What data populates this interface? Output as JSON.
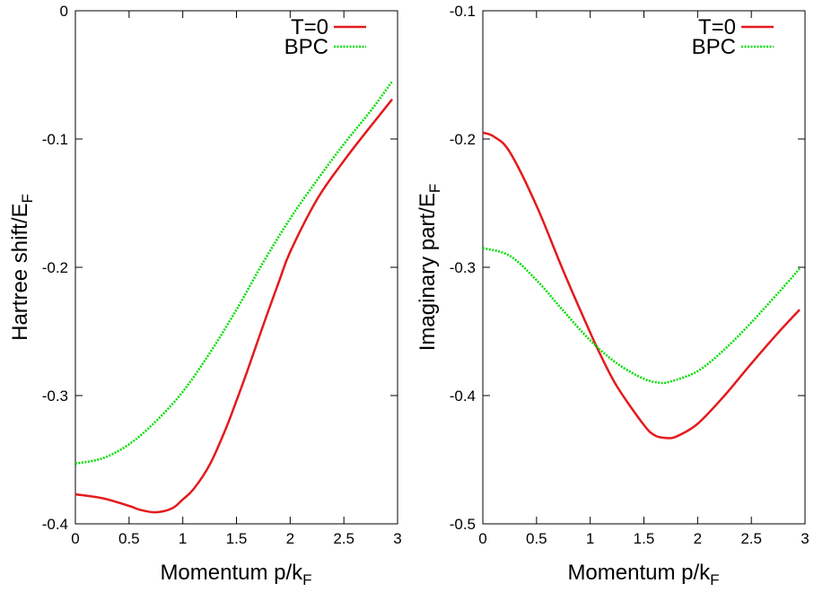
{
  "chart_data": [
    {
      "type": "line",
      "xlabel": "Momentum p/k",
      "xlabel_sub": "F",
      "ylabel": "Hartree shift/E",
      "ylabel_sub": "F",
      "xlim": [
        0,
        3
      ],
      "ylim": [
        -0.4,
        0
      ],
      "xticks": [
        0,
        0.5,
        1,
        1.5,
        2,
        2.5,
        3
      ],
      "xtick_labels": [
        "0",
        "0.5",
        "1",
        "1.5",
        "2",
        "2.5",
        "3"
      ],
      "yticks": [
        -0.4,
        -0.3,
        -0.2,
        -0.1,
        0
      ],
      "ytick_labels": [
        "-0.4",
        "-0.3",
        "-0.2",
        "-0.1",
        "0"
      ],
      "grid": false,
      "legend_position": "top-right",
      "series": [
        {
          "name": "T=0",
          "color": "#e41a1c",
          "dash": "solid",
          "x": [
            0,
            0.25,
            0.5,
            0.6,
            0.75,
            0.9,
            1.0,
            1.1,
            1.25,
            1.4,
            1.5,
            1.6,
            1.75,
            1.9,
            2.0,
            2.25,
            2.5,
            2.75,
            2.95
          ],
          "y": [
            -0.377,
            -0.38,
            -0.386,
            -0.389,
            -0.391,
            -0.388,
            -0.381,
            -0.373,
            -0.354,
            -0.326,
            -0.304,
            -0.281,
            -0.245,
            -0.21,
            -0.188,
            -0.147,
            -0.117,
            -0.09,
            -0.069
          ]
        },
        {
          "name": "BPC",
          "color": "#00dd00",
          "dash": "dotted",
          "x": [
            0,
            0.25,
            0.5,
            0.75,
            1.0,
            1.25,
            1.5,
            1.75,
            2.0,
            2.25,
            2.5,
            2.75,
            2.95
          ],
          "y": [
            -0.353,
            -0.349,
            -0.338,
            -0.32,
            -0.297,
            -0.267,
            -0.233,
            -0.196,
            -0.162,
            -0.132,
            -0.104,
            -0.078,
            -0.055
          ]
        }
      ]
    },
    {
      "type": "line",
      "xlabel": "Momentum p/k",
      "xlabel_sub": "F",
      "ylabel": "Imaginary part/E",
      "ylabel_sub": "F",
      "xlim": [
        0,
        3
      ],
      "ylim": [
        -0.5,
        -0.1
      ],
      "xticks": [
        0,
        0.5,
        1,
        1.5,
        2,
        2.5,
        3
      ],
      "xtick_labels": [
        "0",
        "0.5",
        "1",
        "1.5",
        "2",
        "2.5",
        "3"
      ],
      "yticks": [
        -0.5,
        -0.4,
        -0.3,
        -0.2,
        -0.1
      ],
      "ytick_labels": [
        "-0.5",
        "-0.4",
        "-0.3",
        "-0.2",
        "-0.1"
      ],
      "grid": false,
      "legend_position": "top-right",
      "series": [
        {
          "name": "T=0",
          "color": "#e41a1c",
          "dash": "solid",
          "x": [
            0,
            0.1,
            0.25,
            0.5,
            0.75,
            1.0,
            1.1,
            1.25,
            1.5,
            1.6,
            1.7,
            1.8,
            2.0,
            2.25,
            2.5,
            2.75,
            2.95
          ],
          "y": [
            -0.195,
            -0.198,
            -0.21,
            -0.252,
            -0.303,
            -0.351,
            -0.369,
            -0.393,
            -0.423,
            -0.431,
            -0.433,
            -0.432,
            -0.422,
            -0.4,
            -0.375,
            -0.351,
            -0.333
          ]
        },
        {
          "name": "BPC",
          "color": "#00dd00",
          "dash": "dotted",
          "x": [
            0,
            0.25,
            0.5,
            0.75,
            1.0,
            1.25,
            1.5,
            1.65,
            1.75,
            2.0,
            2.25,
            2.5,
            2.75,
            2.95
          ],
          "y": [
            -0.285,
            -0.291,
            -0.31,
            -0.334,
            -0.357,
            -0.375,
            -0.387,
            -0.39,
            -0.389,
            -0.381,
            -0.364,
            -0.343,
            -0.32,
            -0.301
          ]
        }
      ]
    }
  ]
}
